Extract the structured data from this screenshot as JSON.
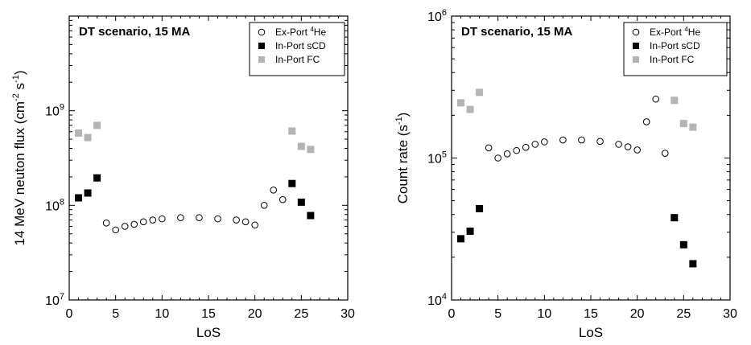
{
  "chart_data": [
    {
      "type": "scatter",
      "title": "DT scenario, 15 MA",
      "xlabel": "LoS",
      "ylabel": "14 MeV neuton flux (cm⁻² s⁻¹)",
      "ylabel_parts": {
        "main": "14 MeV neuton flux (cm",
        "sup1": "-2",
        "mid": " s",
        "sup2": "-1",
        "end": ")"
      },
      "yscale": "log",
      "xlim": [
        0,
        30
      ],
      "ylim": [
        10000000,
        10000000000
      ],
      "x_ticks": [
        0,
        5,
        10,
        15,
        20,
        25,
        30
      ],
      "y_ticks": [
        {
          "value": 10000000,
          "base": "10",
          "exp": "7"
        },
        {
          "value": 100000000,
          "base": "10",
          "exp": "8"
        },
        {
          "value": 1000000000,
          "base": "10",
          "exp": "9"
        }
      ],
      "grid": false,
      "legend_position": "top-right",
      "series": [
        {
          "name": "Ex-Port ⁴He",
          "label_parts": {
            "pre": "Ex-Port ",
            "sup": "4",
            "post": "He"
          },
          "marker": "open-circle",
          "color": "#000000",
          "points": [
            {
              "x": 4,
              "y": 65000000
            },
            {
              "x": 5,
              "y": 55000000
            },
            {
              "x": 6,
              "y": 60000000
            },
            {
              "x": 7,
              "y": 63000000
            },
            {
              "x": 8,
              "y": 67000000
            },
            {
              "x": 9,
              "y": 70000000
            },
            {
              "x": 10,
              "y": 72000000
            },
            {
              "x": 12,
              "y": 74000000
            },
            {
              "x": 14,
              "y": 74000000
            },
            {
              "x": 16,
              "y": 72000000
            },
            {
              "x": 18,
              "y": 70000000
            },
            {
              "x": 19,
              "y": 67000000
            },
            {
              "x": 20,
              "y": 62000000
            },
            {
              "x": 21,
              "y": 100000000
            },
            {
              "x": 22,
              "y": 145000000
            },
            {
              "x": 23,
              "y": 115000000
            }
          ]
        },
        {
          "name": "In-Port sCD",
          "label_parts": {
            "pre": "In-Port sCD",
            "sup": "",
            "post": ""
          },
          "marker": "filled-square",
          "color": "#000000",
          "points": [
            {
              "x": 1,
              "y": 120000000
            },
            {
              "x": 2,
              "y": 135000000
            },
            {
              "x": 3,
              "y": 195000000
            },
            {
              "x": 24,
              "y": 170000000
            },
            {
              "x": 25,
              "y": 108000000
            },
            {
              "x": 26,
              "y": 78000000
            }
          ]
        },
        {
          "name": "In-Port FC",
          "label_parts": {
            "pre": "In-Port FC",
            "sup": "",
            "post": ""
          },
          "marker": "filled-square",
          "color": "#b4b4b4",
          "points": [
            {
              "x": 1,
              "y": 580000000
            },
            {
              "x": 2,
              "y": 520000000
            },
            {
              "x": 3,
              "y": 700000000
            },
            {
              "x": 24,
              "y": 610000000
            },
            {
              "x": 25,
              "y": 420000000
            },
            {
              "x": 26,
              "y": 390000000
            }
          ]
        }
      ]
    },
    {
      "type": "scatter",
      "title": "DT scenario, 15 MA",
      "xlabel": "LoS",
      "ylabel": "Count rate (s⁻¹)",
      "ylabel_parts": {
        "main": "Count rate (s",
        "sup1": "-1",
        "mid": "",
        "sup2": "",
        "end": ")"
      },
      "yscale": "log",
      "xlim": [
        0,
        30
      ],
      "ylim": [
        10000,
        1000000
      ],
      "x_ticks": [
        0,
        5,
        10,
        15,
        20,
        25,
        30
      ],
      "y_ticks": [
        {
          "value": 10000,
          "base": "10",
          "exp": "4"
        },
        {
          "value": 100000,
          "base": "10",
          "exp": "5"
        },
        {
          "value": 1000000,
          "base": "10",
          "exp": "6"
        }
      ],
      "grid": false,
      "legend_position": "top-right",
      "series": [
        {
          "name": "Ex-Port ⁴He",
          "label_parts": {
            "pre": "Ex-Port ",
            "sup": "4",
            "post": "He"
          },
          "marker": "open-circle",
          "color": "#000000",
          "points": [
            {
              "x": 4,
              "y": 118000
            },
            {
              "x": 5,
              "y": 100000
            },
            {
              "x": 6,
              "y": 107000
            },
            {
              "x": 7,
              "y": 113000
            },
            {
              "x": 8,
              "y": 119000
            },
            {
              "x": 9,
              "y": 125000
            },
            {
              "x": 10,
              "y": 130000
            },
            {
              "x": 12,
              "y": 134000
            },
            {
              "x": 14,
              "y": 134000
            },
            {
              "x": 16,
              "y": 131000
            },
            {
              "x": 18,
              "y": 125000
            },
            {
              "x": 19,
              "y": 120000
            },
            {
              "x": 20,
              "y": 114000
            },
            {
              "x": 21,
              "y": 180000
            },
            {
              "x": 22,
              "y": 260000
            },
            {
              "x": 23,
              "y": 108000
            }
          ]
        },
        {
          "name": "In-Port sCD",
          "label_parts": {
            "pre": "In-Port sCD",
            "sup": "",
            "post": ""
          },
          "marker": "filled-square",
          "color": "#000000",
          "points": [
            {
              "x": 1,
              "y": 27000
            },
            {
              "x": 2,
              "y": 30500
            },
            {
              "x": 3,
              "y": 44000
            },
            {
              "x": 24,
              "y": 38000
            },
            {
              "x": 25,
              "y": 24500
            },
            {
              "x": 26,
              "y": 18000
            }
          ]
        },
        {
          "name": "In-Port FC",
          "label_parts": {
            "pre": "In-Port FC",
            "sup": "",
            "post": ""
          },
          "marker": "filled-square",
          "color": "#b4b4b4",
          "points": [
            {
              "x": 1,
              "y": 245000
            },
            {
              "x": 2,
              "y": 220000
            },
            {
              "x": 3,
              "y": 290000
            },
            {
              "x": 24,
              "y": 255000
            },
            {
              "x": 25,
              "y": 175000
            },
            {
              "x": 26,
              "y": 165000
            }
          ]
        }
      ]
    }
  ]
}
